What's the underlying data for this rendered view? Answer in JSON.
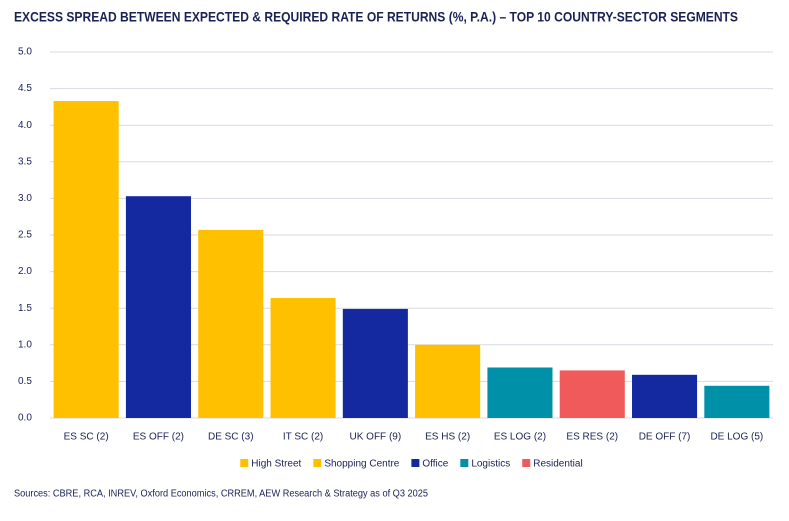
{
  "chart_data": {
    "type": "bar",
    "title": "EXCESS SPREAD BETWEEN EXPECTED & REQUIRED RATE OF RETURNS (%, P.A.) – TOP 10 COUNTRY-SECTOR SEGMENTS",
    "categories": [
      "ES SC (2)",
      "ES OFF (2)",
      "DE SC (3)",
      "IT SC (2)",
      "UK OFF (9)",
      "ES HS (2)",
      "ES LOG (2)",
      "ES RES (2)",
      "DE OFF (7)",
      "DE LOG (5)"
    ],
    "series": [
      {
        "name": "High Street",
        "color": "#ffc000",
        "values": [
          null,
          null,
          null,
          null,
          null,
          1.0,
          null,
          null,
          null,
          null
        ]
      },
      {
        "name": "Shopping Centre",
        "color": "#ffc000",
        "values": [
          4.33,
          null,
          2.57,
          1.64,
          null,
          null,
          null,
          null,
          null,
          null
        ]
      },
      {
        "name": "Office",
        "color": "#1428a0",
        "values": [
          null,
          3.03,
          null,
          null,
          1.49,
          null,
          null,
          null,
          0.59,
          null
        ]
      },
      {
        "name": "Logistics",
        "color": "#0091a8",
        "values": [
          null,
          null,
          null,
          null,
          null,
          null,
          0.69,
          null,
          null,
          0.44
        ]
      },
      {
        "name": "Residential",
        "color": "#f05a5a",
        "values": [
          null,
          null,
          null,
          null,
          null,
          null,
          null,
          0.65,
          null,
          null
        ]
      }
    ],
    "ylim": [
      0,
      5
    ],
    "yticks": [
      {
        "value": 0,
        "label": "0.0"
      },
      0.5,
      {
        "value": 1,
        "label": "1.0"
      },
      1.5,
      {
        "value": 2,
        "label": "2.0"
      },
      2.5,
      {
        "value": 3,
        "label": "3.0"
      },
      3.5,
      {
        "value": 4,
        "label": "4.0"
      },
      4.5,
      {
        "value": 5,
        "label": "5.0"
      }
    ],
    "grid": true,
    "legend": "bottom",
    "source": "Sources: CBRE, RCA, INREV, Oxford Economics, CRREM, AEW Research & Strategy as of Q3 2025"
  }
}
